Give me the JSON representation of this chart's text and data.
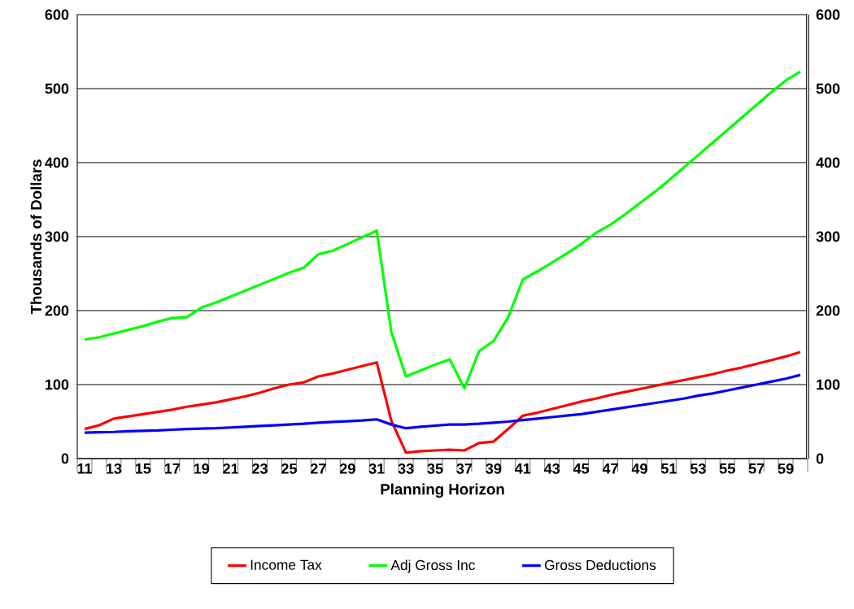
{
  "chart_data": {
    "type": "line",
    "xlabel": "Planning Horizon",
    "ylabel": "Thousands of Dollars",
    "categories": [
      "11",
      null,
      "13",
      null,
      "15",
      null,
      "17",
      null,
      "19",
      null,
      "21",
      null,
      "23",
      null,
      "25",
      null,
      "27",
      null,
      "29",
      null,
      "31",
      null,
      "33",
      null,
      "35",
      null,
      "37",
      null,
      "39",
      null,
      "41",
      null,
      "43",
      null,
      "45",
      null,
      "47",
      null,
      "49",
      null,
      "51",
      null,
      "53",
      null,
      "55",
      null,
      "57",
      null,
      "59",
      null
    ],
    "series": [
      {
        "name": "Income Tax",
        "color": "#ff0000",
        "values": [
          40,
          45,
          54,
          57,
          60,
          63,
          66,
          70,
          73,
          76,
          80,
          84,
          89,
          95,
          100,
          103,
          111,
          115,
          120,
          125,
          130,
          51,
          8,
          10,
          11,
          12,
          11,
          21,
          23,
          40,
          58,
          62,
          67,
          72,
          77,
          81,
          86,
          90,
          94,
          98,
          102,
          106,
          110,
          114,
          119,
          123,
          128,
          133,
          138,
          144
        ]
      },
      {
        "name": "Adj Gross Inc",
        "color": "#00ff00",
        "values": [
          161,
          164,
          169,
          174,
          179,
          185,
          190,
          191,
          204,
          211,
          219,
          227,
          235,
          243,
          251,
          258,
          276,
          281,
          290,
          299,
          308,
          171,
          111,
          119,
          127,
          134,
          95,
          145,
          159,
          191,
          242,
          253,
          265,
          277,
          290,
          305,
          316,
          330,
          345,
          360,
          376,
          393,
          410,
          427,
          444,
          461,
          478,
          495,
          511,
          523
        ]
      },
      {
        "name": "Gross Deductions",
        "color": "#0000ff",
        "values": [
          35,
          35.5,
          36,
          37,
          37.5,
          38,
          39,
          40,
          40.5,
          41,
          42,
          43,
          44,
          45,
          46,
          47,
          48.5,
          49.5,
          50.5,
          51.5,
          53,
          46,
          41,
          43,
          44.5,
          46,
          46,
          47,
          48.5,
          50,
          52,
          54,
          56,
          58,
          60,
          63,
          66,
          69,
          72,
          75,
          78,
          81,
          85,
          88,
          92,
          96,
          100,
          104,
          108,
          113
        ]
      }
    ],
    "ylim": [
      0,
      600
    ],
    "yticks": [
      0,
      100,
      200,
      300,
      400,
      500,
      600
    ],
    "y2lim": [
      0,
      600
    ],
    "y2ticks": [
      0,
      100,
      200,
      300,
      400,
      500,
      600
    ],
    "grid": "y",
    "legend": "bottom",
    "marker": "none",
    "line_style": "solid"
  }
}
